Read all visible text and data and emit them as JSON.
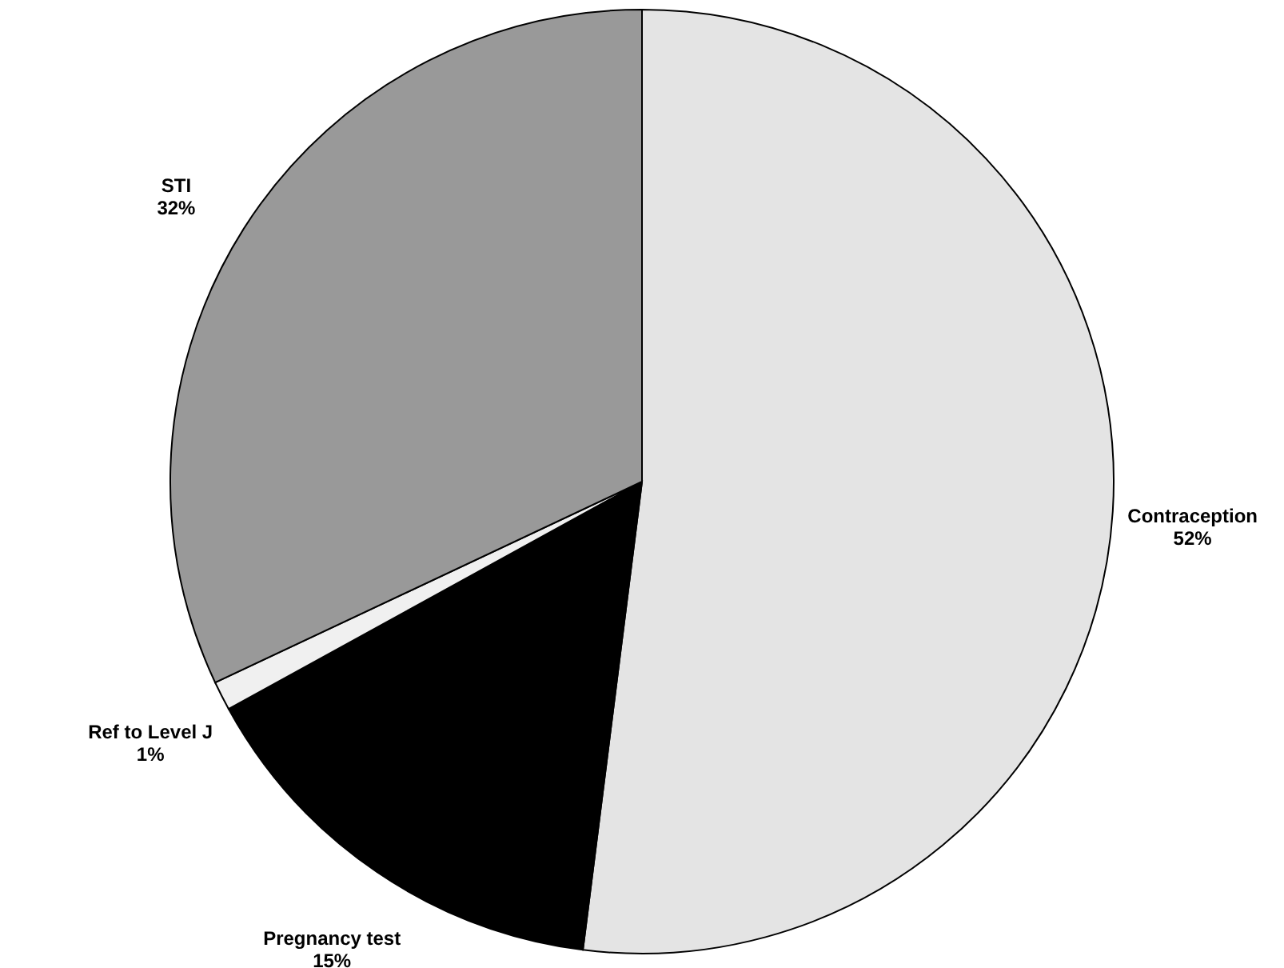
{
  "chart_data": {
    "type": "pie",
    "categories": [
      "Contraception",
      "Pregnancy test",
      "Ref to Level J",
      "STI"
    ],
    "values": [
      52,
      15,
      1,
      32
    ],
    "colors": [
      "#e4e4e4",
      "#000000",
      "#f0f0f0",
      "#999999"
    ],
    "value_labels": [
      "52%",
      "15%",
      "1%",
      "32%"
    ],
    "legend": false
  }
}
